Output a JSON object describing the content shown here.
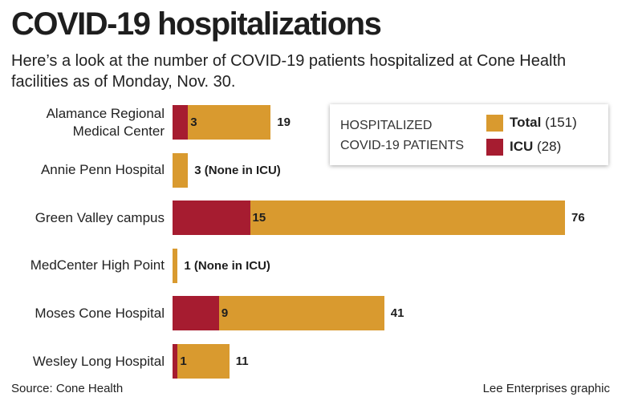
{
  "title": "COVID-19 hospitalizations",
  "subtitle": "Here’s a look at the number of COVID-19 patients hospitalized at Cone Health facilities as of Monday, Nov. 30.",
  "colors": {
    "total": "#d99a2f",
    "icu": "#a61c30"
  },
  "chart_data": {
    "type": "bar",
    "orientation": "horizontal",
    "stacked": "overlay",
    "title": "COVID-19 hospitalizations",
    "categories": [
      "Alamance Regional\nMedical Center",
      "Annie Penn Hospital",
      "Green Valley campus",
      "MedCenter High Point",
      "Moses Cone Hospital",
      "Wesley Long Hospital"
    ],
    "series": [
      {
        "name": "Total",
        "values": [
          19,
          3,
          76,
          1,
          41,
          11
        ]
      },
      {
        "name": "ICU",
        "values": [
          3,
          0,
          15,
          0,
          9,
          1
        ]
      }
    ],
    "total_labels": [
      "19",
      "3 (None in ICU)",
      "76",
      "1 (None in ICU)",
      "41",
      "11"
    ],
    "icu_labels": [
      "3",
      "",
      "15",
      "",
      "9",
      "1"
    ],
    "xlim": [
      0,
      76
    ],
    "grid": false,
    "legend": {
      "title": "HOSPITALIZED\nCOVID-19 PATIENTS",
      "placement": "top-right",
      "total_label": "Total",
      "total_count": "(151)",
      "icu_label": "ICU",
      "icu_count": "(28)"
    }
  },
  "source": "Source: Cone Health",
  "credit": "Lee Enterprises graphic"
}
